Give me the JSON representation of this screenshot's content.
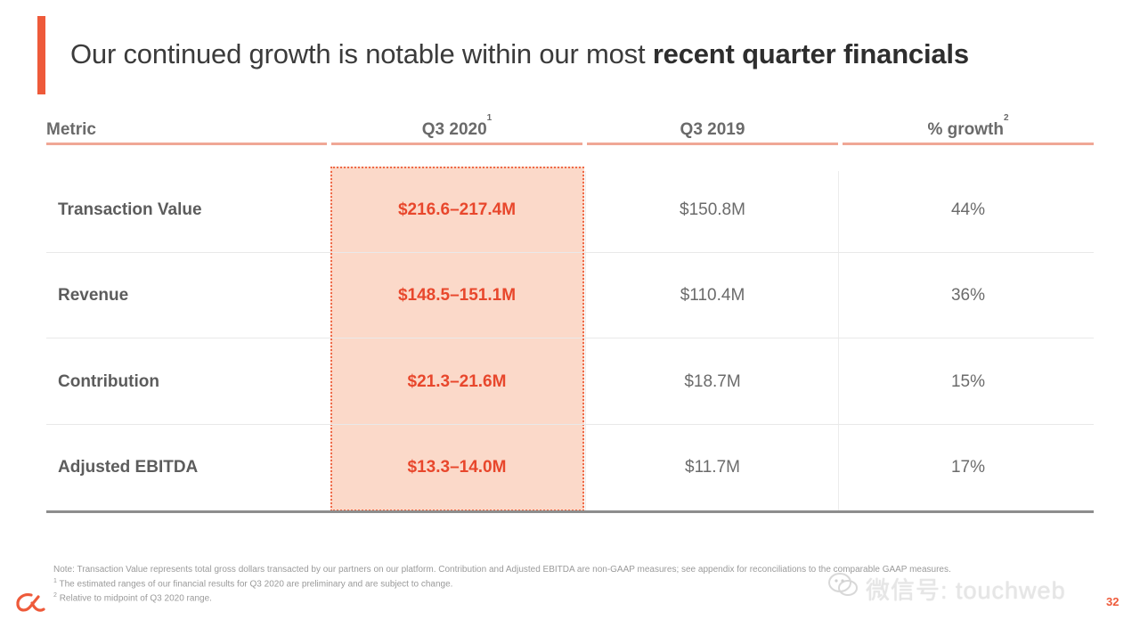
{
  "title": {
    "regular": "Our continued growth is notable within our most",
    "bold": "recent quarter financials"
  },
  "table": {
    "headers": {
      "metric": "Metric",
      "q3_2020": "Q3 2020",
      "q3_2020_sup": "1",
      "q3_2019": "Q3 2019",
      "growth": "% growth",
      "growth_sup": "2"
    },
    "rows": [
      {
        "metric": "Transaction Value",
        "q3_2020": "$216.6–217.4M",
        "q3_2019": "$150.8M",
        "growth": "44%"
      },
      {
        "metric": "Revenue",
        "q3_2020": "$148.5–151.1M",
        "q3_2019": "$110.4M",
        "growth": "36%"
      },
      {
        "metric": "Contribution",
        "q3_2020": "$21.3–21.6M",
        "q3_2019": "$18.7M",
        "growth": "15%"
      },
      {
        "metric": "Adjusted EBITDA",
        "q3_2020": "$13.3–14.0M",
        "q3_2019": "$11.7M",
        "growth": "17%"
      }
    ]
  },
  "footnotes": {
    "note": "Note: Transaction Value represents total gross dollars transacted by our partners on our platform. Contribution and Adjusted EBITDA are non-GAAP measures; see appendix for reconciliations to the comparable GAAP measures.",
    "fn1_sup": "1",
    "fn1": "The estimated ranges of our financial results for Q3 2020 are preliminary and are subject to change.",
    "fn2_sup": "2",
    "fn2": "Relative to midpoint of Q3 2020 range."
  },
  "page_number": "32",
  "watermark": "微信号: touchweb",
  "colors": {
    "accent": "#ee5a3a",
    "highlight_fill": "#fbd9c9",
    "highlight_text": "#e8472c"
  },
  "icons": {
    "logo": "affirm-logo",
    "watermark": "wechat-icon"
  }
}
